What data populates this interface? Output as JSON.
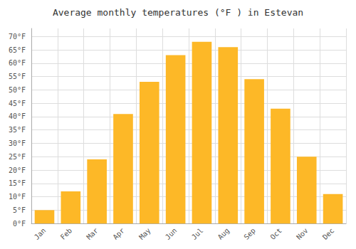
{
  "chart_data": {
    "type": "bar",
    "title": "Average monthly temperatures (°F ) in Estevan",
    "categories": [
      "Jan",
      "Feb",
      "Mar",
      "Apr",
      "May",
      "Jun",
      "Jul",
      "Aug",
      "Sep",
      "Oct",
      "Nov",
      "Dec"
    ],
    "values": [
      5,
      12,
      24,
      41,
      53,
      63,
      68,
      66,
      54,
      43,
      25,
      11
    ],
    "color": "#FDB827",
    "ylim": [
      0,
      73
    ],
    "yticks": [
      {
        "value": 0,
        "label": "0°F"
      },
      {
        "value": 5,
        "label": "5°F"
      },
      {
        "value": 10,
        "label": "10°F"
      },
      {
        "value": 15,
        "label": "15°F"
      },
      {
        "value": 20,
        "label": "20°F"
      },
      {
        "value": 25,
        "label": "25°F"
      },
      {
        "value": 30,
        "label": "30°F"
      },
      {
        "value": 35,
        "label": "35°F"
      },
      {
        "value": 40,
        "label": "40°F"
      },
      {
        "value": 45,
        "label": "45°F"
      },
      {
        "value": 50,
        "label": "50°F"
      },
      {
        "value": 55,
        "label": "55°F"
      },
      {
        "value": 60,
        "label": "60°F"
      },
      {
        "value": 65,
        "label": "65°F"
      },
      {
        "value": 70,
        "label": "70°F"
      }
    ],
    "grid": true
  }
}
